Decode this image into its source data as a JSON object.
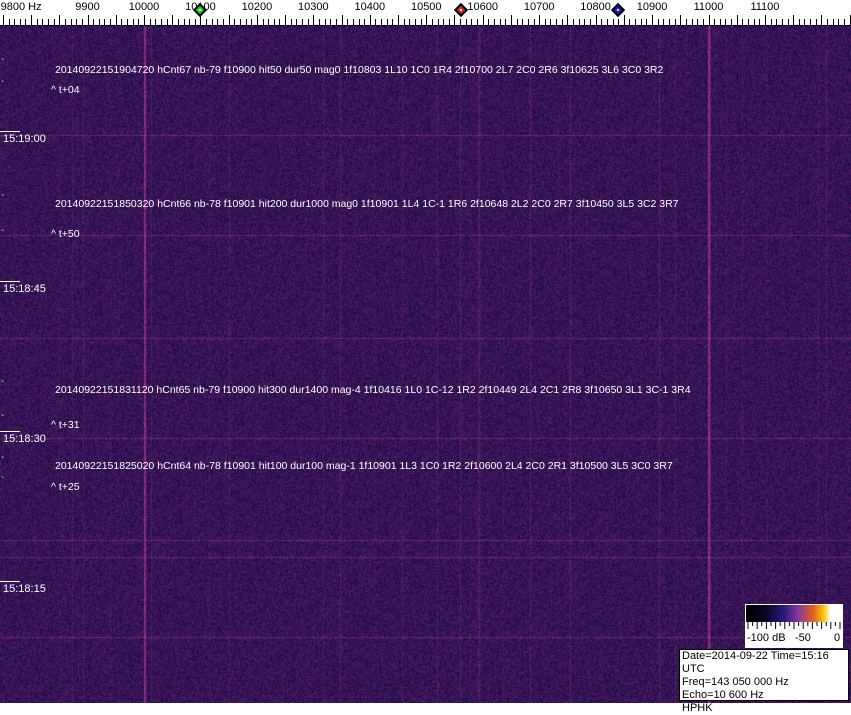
{
  "freq_axis": {
    "labels": [
      {
        "text": "9800 Hz",
        "hz": 9800
      },
      {
        "text": "9900",
        "hz": 9900
      },
      {
        "text": "10000",
        "hz": 10000
      },
      {
        "text": "10100",
        "hz": 10100
      },
      {
        "text": "10200",
        "hz": 10200
      },
      {
        "text": "10300",
        "hz": 10300
      },
      {
        "text": "10400",
        "hz": 10400
      },
      {
        "text": "10500",
        "hz": 10500
      },
      {
        "text": "10600",
        "hz": 10600
      },
      {
        "text": "10700",
        "hz": 10700
      },
      {
        "text": "10800",
        "hz": 10800
      },
      {
        "text": "10900",
        "hz": 10900
      },
      {
        "text": "11000",
        "hz": 11000
      },
      {
        "text": "11100",
        "hz": 11100
      }
    ],
    "markers": [
      {
        "name": "green",
        "hz": 10100,
        "color": "#22cc22"
      },
      {
        "name": "red",
        "hz": 10562,
        "color": "#cc2222"
      },
      {
        "name": "blue",
        "hz": 10840,
        "color": "#1a1acc"
      }
    ]
  },
  "detections": [
    {
      "text": "20140922151904720 hCnt67 nb-79 f10900 hit50 dur50 mag0 1f10803 1L10 1C0 1R4 2f10700 2L7 2C0 2R6 3f10625 3L6 3C0 3R2",
      "offset": "^ t+04"
    },
    {
      "text": "20140922151850320 hCnt66 nb-78 f10901 hit200 dur1000 mag0 1f10901 1L4 1C-1 1R6 2f10648 2L2 2C0 2R7 3f10450 3L5 3C2 3R7",
      "offset": "^ t+50"
    },
    {
      "text": "20140922151831120 hCnt65 nb-79 f10900 hit300 dur1400 mag-4 1f10416 1L0 1C-12 1R2 2f10449 2L4 2C1 2R8 3f10650 3L1 3C-1 3R4",
      "offset": "^ t+31"
    },
    {
      "text": "20140922151825020 hCnt64 nb-78 f10901 hit100 dur100 mag-1 1f10901 1L3 1C0 1R2 2f10600 2L4 2C0 2R1 3f10500 3L5 3C0 3R7",
      "offset": "^ t+25"
    }
  ],
  "time_labels": [
    "15:19:00",
    "15:18:45",
    "15:18:30",
    "15:18:15"
  ],
  "color_scale": {
    "labels": [
      "-100 dB",
      "-50",
      "0"
    ]
  },
  "info": {
    "line1": "Date=2014-09-22 Time=15:16 UTC",
    "line2": "Freq=143 050 000 Hz",
    "line3": "Echo=10 600 Hz",
    "line4": "HPHK"
  },
  "colors": {
    "background": "#20157a",
    "signal": "#a03a8a"
  }
}
